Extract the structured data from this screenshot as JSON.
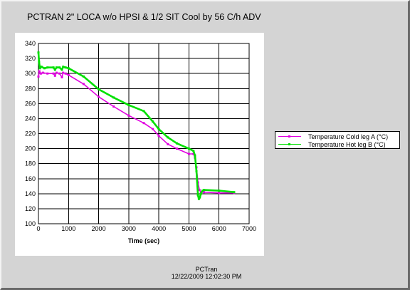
{
  "window": {
    "title": "PCTRAN 2\" LOCA w/o HPSI & 1/2 SIT Cool by 56 C/h ADV"
  },
  "footer": {
    "app_name": "PCTran",
    "timestamp": "12/22/2009 12:02:30 PM"
  },
  "chart_data": {
    "type": "line",
    "title": "PCTRAN 2\" LOCA w/o HPSI & 1/2 SIT Cool by 56 C/h ADV",
    "xlabel": "Time (sec)",
    "ylabel": "",
    "xlim": [
      0,
      7000
    ],
    "ylim": [
      100,
      340
    ],
    "xticks": [
      0,
      1000,
      2000,
      3000,
      4000,
      5000,
      6000,
      7000
    ],
    "yticks": [
      100,
      120,
      140,
      160,
      180,
      200,
      220,
      240,
      260,
      280,
      300,
      320,
      340
    ],
    "grid": true,
    "legend_position": "right",
    "series": [
      {
        "name": "Temperature Cold leg A (°C)",
        "color": "#e000e0",
        "x": [
          0,
          30,
          80,
          150,
          300,
          500,
          550,
          600,
          700,
          780,
          820,
          900,
          1000,
          1500,
          2000,
          2500,
          3000,
          3500,
          3800,
          4000,
          4300,
          4600,
          5000,
          5150,
          5200,
          5250,
          5300,
          5350,
          5400,
          5500,
          6000,
          6500
        ],
        "values": [
          296,
          303,
          300,
          301,
          300,
          300,
          297,
          301,
          300,
          295,
          301,
          300,
          298,
          286,
          269,
          256,
          244,
          234,
          226,
          217,
          206,
          200,
          193,
          193,
          188,
          175,
          155,
          145,
          142,
          142,
          141,
          141
        ]
      },
      {
        "name": "Temperature Hot leg B (°C)",
        "color": "#00e000",
        "x": [
          0,
          20,
          50,
          100,
          200,
          300,
          500,
          550,
          600,
          700,
          780,
          820,
          900,
          1000,
          1500,
          2000,
          2500,
          3000,
          3500,
          3800,
          4000,
          4300,
          4600,
          5000,
          5150,
          5200,
          5250,
          5300,
          5330,
          5360,
          5400,
          5450,
          5500,
          6000,
          6500
        ],
        "values": [
          328,
          316,
          307,
          309,
          307,
          308,
          308,
          305,
          308,
          308,
          305,
          309,
          308,
          307,
          296,
          279,
          268,
          258,
          250,
          236,
          226,
          215,
          207,
          200,
          197,
          191,
          170,
          138,
          133,
          135,
          140,
          144,
          145,
          144,
          142
        ]
      }
    ]
  }
}
